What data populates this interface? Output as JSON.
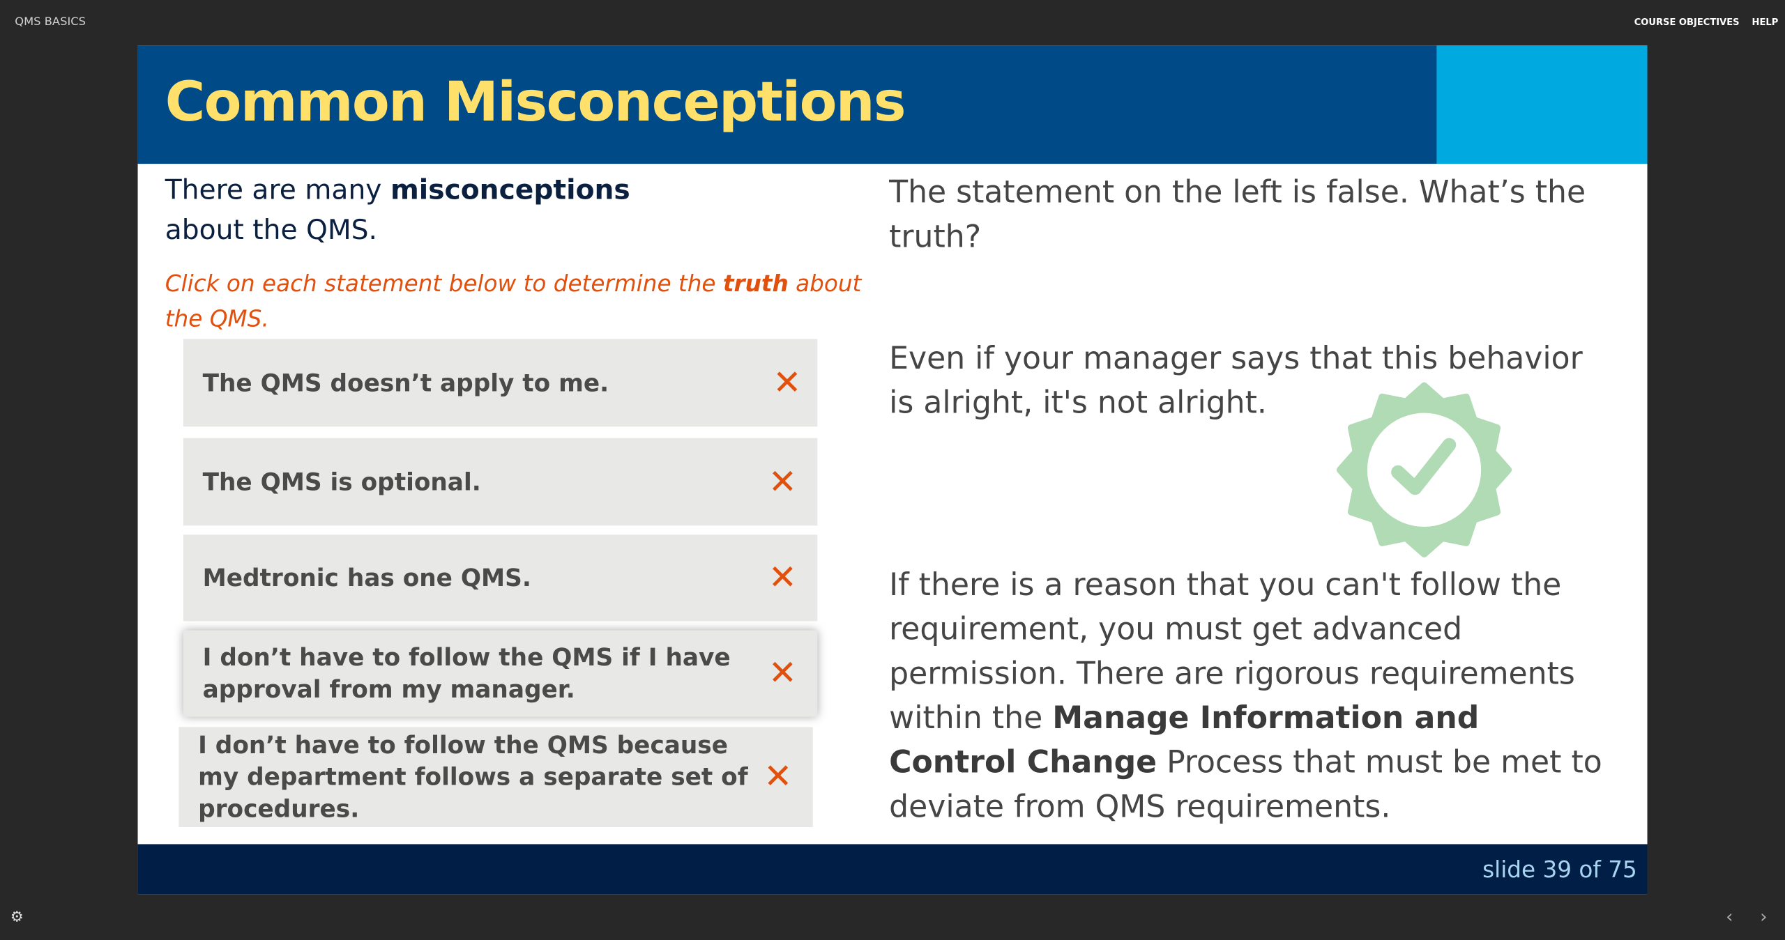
{
  "topbar": {
    "course_title": "QMS BASICS",
    "nav": [
      "COURSE OBJECTIVES",
      "HELP"
    ]
  },
  "slide": {
    "title": "Common Misconceptions",
    "intro": {
      "before": "There are many ",
      "bold": "misconceptions",
      "after": " about the QMS."
    },
    "instruction": {
      "before": "Click on each statement below to determine the ",
      "bold": "truth",
      "after": " about the QMS."
    },
    "statements": [
      "The QMS doesn’t apply to me.",
      "The QMS is optional.",
      "Medtronic has one QMS.",
      "I don’t have to follow the QMS if I have approval from my manager.",
      "I don’t have to follow the QMS because my department follows a separate set of procedures."
    ],
    "statement_icon": "x-mark-icon",
    "feedback": {
      "line1": "The statement on the left is false. What’s the truth?",
      "line2": "Even if your manager says that this behavior is alright, it's not alright.",
      "line3_before": "If there is a reason that you can't follow the requirement, you must get advanced permission. There are rigorous requirements within the ",
      "line3_bold": "Manage Information and Control Change",
      "line3_after": " Process that must be met to deviate from QMS requirements."
    },
    "badge_icon": "check-badge-icon",
    "slide_counter": "slide 39 of 75"
  },
  "colors": {
    "header": "#004b87",
    "accent": "#00a9e0",
    "title": "#ffe06b",
    "orange": "#e2500d",
    "footer": "#001e46",
    "badge": "#b1dbb4"
  },
  "footer_controls": {
    "settings_icon": "gear-icon",
    "prev_icon": "chevron-left-icon",
    "next_icon": "chevron-right-icon"
  }
}
